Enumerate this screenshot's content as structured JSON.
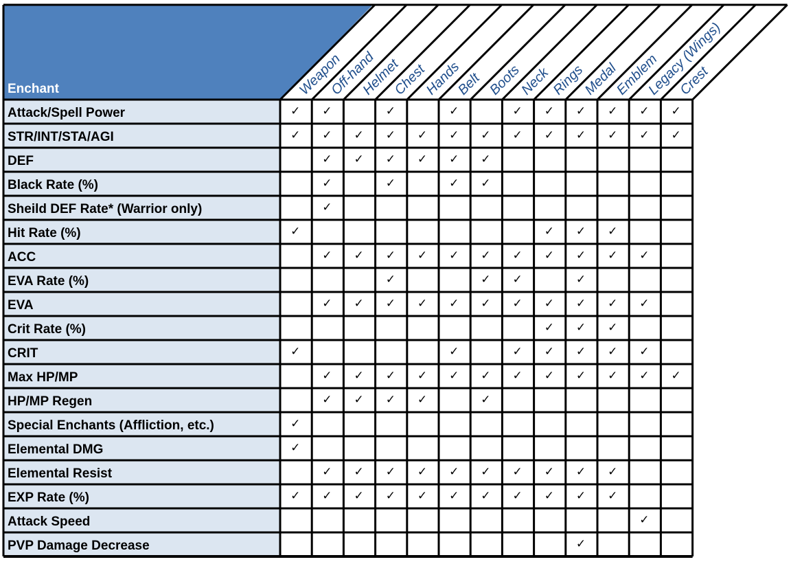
{
  "header": {
    "title": "Enchant"
  },
  "colors": {
    "header_fill": "#4f81bd",
    "row_label_fill": "#dce6f1",
    "column_text": "#1f4e8c",
    "border": "#000000"
  },
  "check_glyph": "✓",
  "columns": [
    "Weapon",
    "Off-hand",
    "Helmet",
    "Chest",
    "Hands",
    "Belt",
    "Boots",
    "Neck",
    "Rings",
    "Medal",
    "Emblem",
    "Legacy (Wings)",
    "Crest"
  ],
  "rows": [
    {
      "label": "Attack/Spell Power",
      "checks": [
        1,
        1,
        0,
        1,
        0,
        1,
        0,
        1,
        1,
        1,
        1,
        1,
        1
      ]
    },
    {
      "label": "STR/INT/STA/AGI",
      "checks": [
        1,
        1,
        1,
        1,
        1,
        1,
        1,
        1,
        1,
        1,
        1,
        1,
        1
      ]
    },
    {
      "label": "DEF",
      "checks": [
        0,
        1,
        1,
        1,
        1,
        1,
        1,
        0,
        0,
        0,
        0,
        0,
        0
      ]
    },
    {
      "label": "Black Rate (%)",
      "checks": [
        0,
        1,
        0,
        1,
        0,
        1,
        1,
        0,
        0,
        0,
        0,
        0,
        0
      ]
    },
    {
      "label": "Sheild DEF Rate* (Warrior only)",
      "checks": [
        0,
        1,
        0,
        0,
        0,
        0,
        0,
        0,
        0,
        0,
        0,
        0,
        0
      ]
    },
    {
      "label": "Hit Rate (%)",
      "checks": [
        1,
        0,
        0,
        0,
        0,
        0,
        0,
        0,
        1,
        1,
        1,
        0,
        0
      ]
    },
    {
      "label": "ACC",
      "checks": [
        0,
        1,
        1,
        1,
        1,
        1,
        1,
        1,
        1,
        1,
        1,
        1,
        0
      ]
    },
    {
      "label": "EVA Rate (%)",
      "checks": [
        0,
        0,
        0,
        1,
        0,
        0,
        1,
        1,
        0,
        1,
        0,
        0,
        0
      ]
    },
    {
      "label": "EVA",
      "checks": [
        0,
        1,
        1,
        1,
        1,
        1,
        1,
        1,
        1,
        1,
        1,
        1,
        0
      ]
    },
    {
      "label": "Crit Rate (%)",
      "checks": [
        0,
        0,
        0,
        0,
        0,
        0,
        0,
        0,
        1,
        1,
        1,
        0,
        0
      ]
    },
    {
      "label": "CRIT",
      "checks": [
        1,
        0,
        0,
        0,
        0,
        1,
        0,
        1,
        1,
        1,
        1,
        1,
        0
      ]
    },
    {
      "label": "Max HP/MP",
      "checks": [
        0,
        1,
        1,
        1,
        1,
        1,
        1,
        1,
        1,
        1,
        1,
        1,
        1
      ]
    },
    {
      "label": "HP/MP Regen",
      "checks": [
        0,
        1,
        1,
        1,
        1,
        0,
        1,
        0,
        0,
        0,
        0,
        0,
        0
      ]
    },
    {
      "label": "Special Enchants (Affliction, etc.)",
      "checks": [
        1,
        0,
        0,
        0,
        0,
        0,
        0,
        0,
        0,
        0,
        0,
        0,
        0
      ]
    },
    {
      "label": "Elemental DMG",
      "checks": [
        1,
        0,
        0,
        0,
        0,
        0,
        0,
        0,
        0,
        0,
        0,
        0,
        0
      ]
    },
    {
      "label": "Elemental Resist",
      "checks": [
        0,
        1,
        1,
        1,
        1,
        1,
        1,
        1,
        1,
        1,
        1,
        0,
        0
      ]
    },
    {
      "label": "EXP Rate (%)",
      "checks": [
        1,
        1,
        1,
        1,
        1,
        1,
        1,
        1,
        1,
        1,
        1,
        0,
        0
      ]
    },
    {
      "label": "Attack Speed",
      "checks": [
        0,
        0,
        0,
        0,
        0,
        0,
        0,
        0,
        0,
        0,
        0,
        1,
        0
      ]
    },
    {
      "label": "PVP Damage Decrease",
      "checks": [
        0,
        0,
        0,
        0,
        0,
        0,
        0,
        0,
        0,
        1,
        0,
        0,
        0
      ]
    }
  ]
}
